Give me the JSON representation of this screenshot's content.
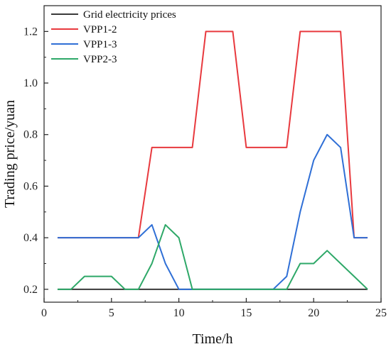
{
  "chart_data": {
    "type": "line",
    "xlabel": "Time/h",
    "ylabel": "Trading price/yuan",
    "xlim": [
      0,
      25
    ],
    "ylim": [
      0.15,
      1.3
    ],
    "xticks": [
      0,
      5,
      10,
      15,
      20,
      25
    ],
    "yticks": [
      0.2,
      0.4,
      0.6,
      0.8,
      1.0,
      1.2
    ],
    "xtick_labels": [
      "0",
      "5",
      "10",
      "15",
      "20",
      "25"
    ],
    "ytick_labels": [
      "0.2",
      "0.4",
      "0.6",
      "0.8",
      "1.0",
      "1.2"
    ],
    "grid": false,
    "legend_position": "top-left",
    "series": [
      {
        "name": "Grid electricity prices",
        "color": "#3a3a3a",
        "x": [
          1,
          24
        ],
        "y": [
          0.2,
          0.2
        ]
      },
      {
        "name": "VPP1-2",
        "color": "#e8393e",
        "x": [
          1,
          2,
          3,
          4,
          5,
          6,
          7,
          8,
          9,
          10,
          11,
          12,
          13,
          14,
          15,
          16,
          17,
          18,
          19,
          20,
          21,
          22,
          23,
          24
        ],
        "y": [
          0.4,
          0.4,
          0.4,
          0.4,
          0.4,
          0.4,
          0.4,
          0.75,
          0.75,
          0.75,
          0.75,
          1.2,
          1.2,
          1.2,
          0.75,
          0.75,
          0.75,
          0.75,
          1.2,
          1.2,
          1.2,
          1.2,
          0.4,
          0.4
        ]
      },
      {
        "name": "VPP1-3",
        "color": "#2f6fd6",
        "x": [
          1,
          2,
          3,
          4,
          5,
          6,
          7,
          8,
          9,
          10,
          11,
          12,
          13,
          14,
          15,
          16,
          17,
          18,
          19,
          20,
          21,
          22,
          23,
          24
        ],
        "y": [
          0.4,
          0.4,
          0.4,
          0.4,
          0.4,
          0.4,
          0.4,
          0.45,
          0.3,
          0.2,
          0.2,
          0.2,
          0.2,
          0.2,
          0.2,
          0.2,
          0.2,
          0.25,
          0.5,
          0.7,
          0.8,
          0.75,
          0.4,
          0.4
        ]
      },
      {
        "name": "VPP2-3",
        "color": "#2ea868",
        "x": [
          1,
          2,
          3,
          4,
          5,
          6,
          7,
          8,
          9,
          10,
          11,
          12,
          13,
          14,
          15,
          16,
          17,
          18,
          19,
          20,
          21,
          22,
          23,
          24
        ],
        "y": [
          0.2,
          0.2,
          0.25,
          0.25,
          0.25,
          0.2,
          0.2,
          0.3,
          0.45,
          0.4,
          0.2,
          0.2,
          0.2,
          0.2,
          0.2,
          0.2,
          0.2,
          0.2,
          0.3,
          0.3,
          0.35,
          0.3,
          0.25,
          0.2
        ]
      }
    ]
  }
}
